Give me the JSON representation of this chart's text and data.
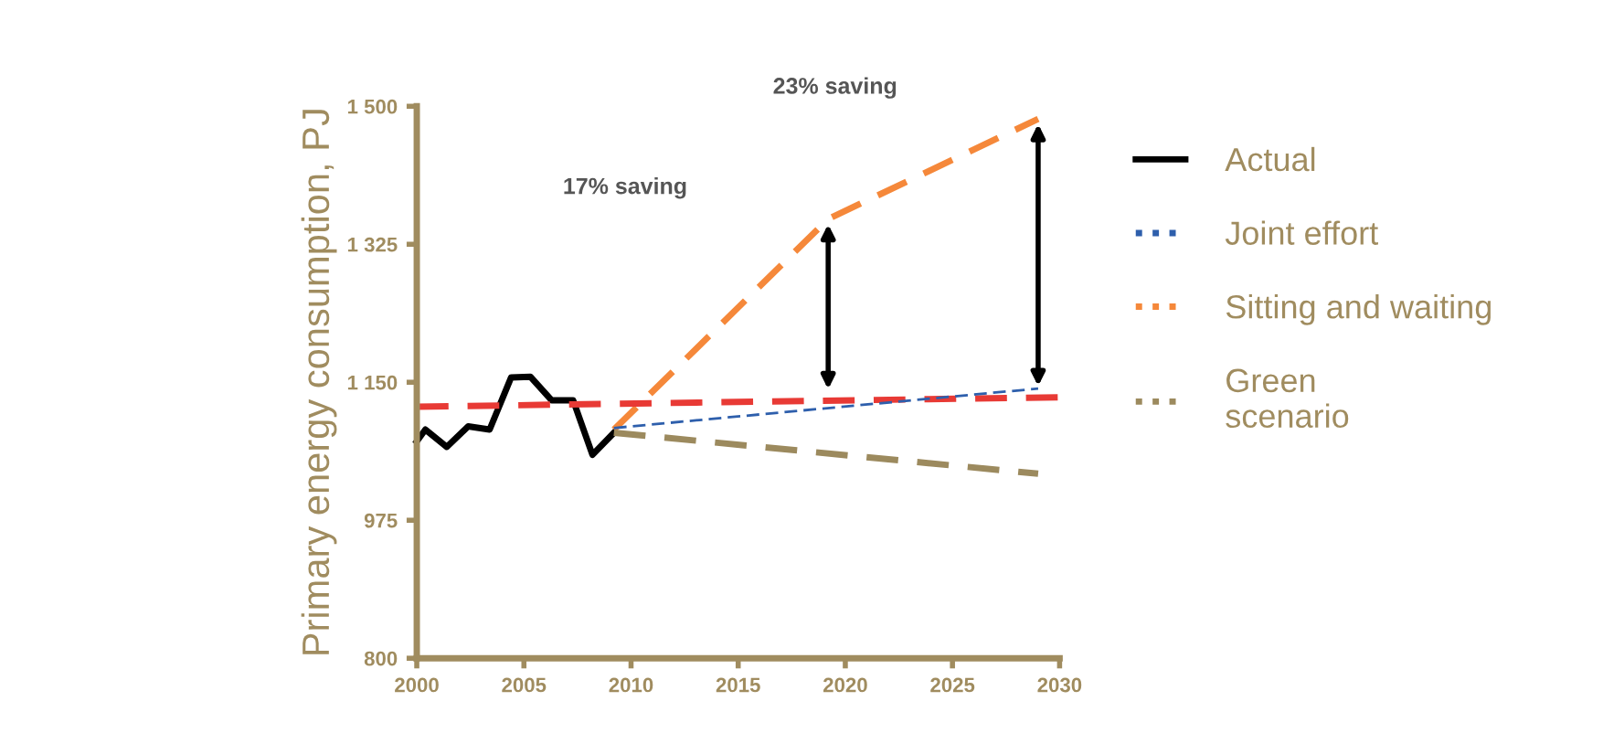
{
  "chart_data": {
    "type": "line",
    "ylabel": "Primary energy consumption, PJ",
    "xlim": [
      2000,
      2030
    ],
    "xticks": [
      2000,
      2005,
      2010,
      2015,
      2020,
      2025,
      2030
    ],
    "ylim": [
      800,
      1500
    ],
    "yticks": [
      {
        "value": 800,
        "label": "800"
      },
      {
        "value": 975,
        "label": "975"
      },
      {
        "value": 1150,
        "label": "1 150"
      },
      {
        "value": 1325,
        "label": "1 325"
      },
      {
        "value": 1500,
        "label": "1 500"
      }
    ],
    "grid": false,
    "legend": "right",
    "marker": "none",
    "series": [
      {
        "name": "Actual",
        "color": "#000000",
        "line_style": "solid",
        "x": [
          2000,
          2000.4,
          2001.4,
          2002.4,
          2003.4,
          2004.4,
          2005.3,
          2006.3,
          2007.3,
          2008.2,
          2009.2
        ],
        "values": [
          1075,
          1090,
          1068,
          1094,
          1090,
          1156,
          1157,
          1127,
          1127,
          1058,
          1086
        ]
      },
      {
        "name": "Joint effort",
        "color": "#2e5fac",
        "line_style": "dashed",
        "x": [
          2009.2,
          2029
        ],
        "values": [
          1092,
          1142
        ]
      },
      {
        "name": "Sitting and waiting",
        "color": "#f5883a",
        "line_style": "dashed",
        "x": [
          2009.2,
          2019.2,
          2029
        ],
        "values": [
          1090,
          1357,
          1484
        ]
      },
      {
        "name": "Green\nscenario",
        "color": "#9c8a5e",
        "line_style": "dashed",
        "x": [
          2009.2,
          2029
        ],
        "values": [
          1086,
          1034
        ]
      },
      {
        "color": "#e83a35",
        "line_style": "dashed",
        "x": [
          2000,
          2030
        ],
        "values": [
          1119,
          1131
        ]
      }
    ],
    "annotations": [
      "17% saving",
      "23% saving"
    ]
  }
}
